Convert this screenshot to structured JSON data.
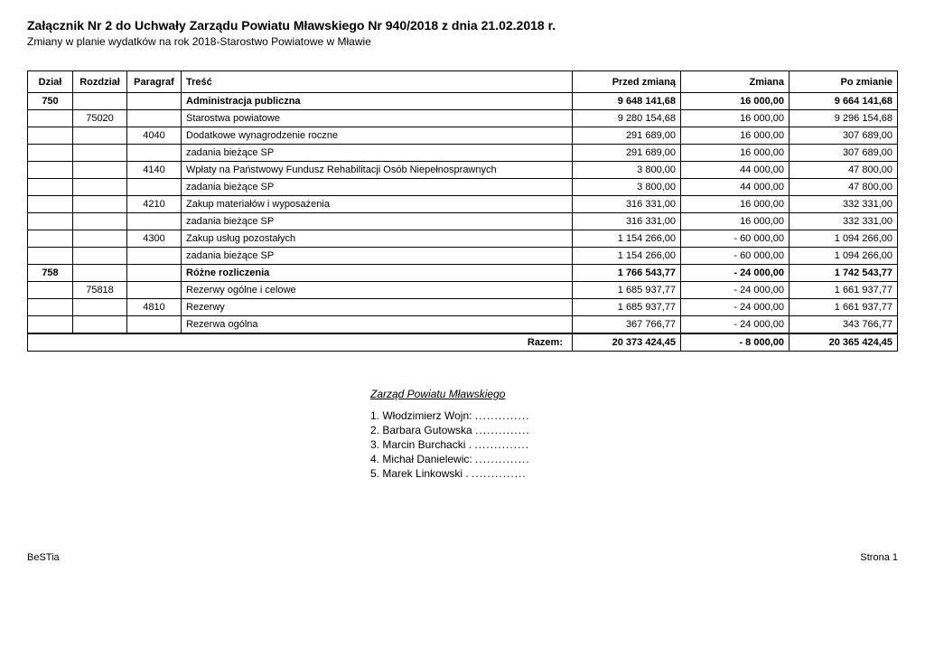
{
  "header": {
    "title": "Załącznik Nr 2 do Uchwały Zarządu Powiatu Mławskiego Nr 940/2018 z dnia 21.02.2018 r.",
    "subtitle": "Zmiany w planie wydatków na rok 2018-Starostwo Powiatowe w Mławie"
  },
  "columns": {
    "dzial": "Dział",
    "rozdzial": "Rozdział",
    "paragraf": "Paragraf",
    "tresc": "Treść",
    "przed": "Przed zmianą",
    "zmiana": "Zmiana",
    "po": "Po zmianie"
  },
  "rows": [
    {
      "dzial": "750",
      "rozdzial": "",
      "paragraf": "",
      "tresc": "Administracja publiczna",
      "przed": "9 648 141,68",
      "zmiana": "16 000,00",
      "po": "9 664 141,68",
      "bold": true
    },
    {
      "dzial": "",
      "rozdzial": "75020",
      "paragraf": "",
      "tresc": "Starostwa powiatowe",
      "przed": "9 280 154,68",
      "zmiana": "16 000,00",
      "po": "9 296 154,68",
      "bold": false
    },
    {
      "dzial": "",
      "rozdzial": "",
      "paragraf": "4040",
      "tresc": "Dodatkowe wynagrodzenie roczne",
      "przed": "291 689,00",
      "zmiana": "16 000,00",
      "po": "307 689,00",
      "bold": false
    },
    {
      "dzial": "",
      "rozdzial": "",
      "paragraf": "",
      "tresc": "zadania bieżące SP",
      "przed": "291 689,00",
      "zmiana": "16 000,00",
      "po": "307 689,00",
      "bold": false
    },
    {
      "dzial": "",
      "rozdzial": "",
      "paragraf": "4140",
      "tresc": "Wpłaty na Państwowy Fundusz Rehabilitacji Osób Niepełnosprawnych",
      "przed": "3 800,00",
      "zmiana": "44 000,00",
      "po": "47 800,00",
      "bold": false
    },
    {
      "dzial": "",
      "rozdzial": "",
      "paragraf": "",
      "tresc": "zadania bieżące SP",
      "przed": "3 800,00",
      "zmiana": "44 000,00",
      "po": "47 800,00",
      "bold": false
    },
    {
      "dzial": "",
      "rozdzial": "",
      "paragraf": "4210",
      "tresc": "Zakup materiałów i wyposażenia",
      "przed": "316 331,00",
      "zmiana": "16 000,00",
      "po": "332 331,00",
      "bold": false
    },
    {
      "dzial": "",
      "rozdzial": "",
      "paragraf": "",
      "tresc": "zadania bieżące SP",
      "przed": "316 331,00",
      "zmiana": "16 000,00",
      "po": "332 331,00",
      "bold": false
    },
    {
      "dzial": "",
      "rozdzial": "",
      "paragraf": "4300",
      "tresc": "Zakup usług pozostałych",
      "przed": "1 154 266,00",
      "zmiana": "- 60 000,00",
      "po": "1 094 266,00",
      "bold": false
    },
    {
      "dzial": "",
      "rozdzial": "",
      "paragraf": "",
      "tresc": "zadania bieżące SP",
      "przed": "1 154 266,00",
      "zmiana": "- 60 000,00",
      "po": "1 094 266,00",
      "bold": false
    },
    {
      "dzial": "758",
      "rozdzial": "",
      "paragraf": "",
      "tresc": "Różne rozliczenia",
      "przed": "1 766 543,77",
      "zmiana": "- 24 000,00",
      "po": "1 742 543,77",
      "bold": true
    },
    {
      "dzial": "",
      "rozdzial": "75818",
      "paragraf": "",
      "tresc": "Rezerwy ogólne i celowe",
      "przed": "1 685 937,77",
      "zmiana": "- 24 000,00",
      "po": "1 661 937,77",
      "bold": false
    },
    {
      "dzial": "",
      "rozdzial": "",
      "paragraf": "4810",
      "tresc": "Rezerwy",
      "przed": "1 685 937,77",
      "zmiana": "- 24 000,00",
      "po": "1 661 937,77",
      "bold": false
    },
    {
      "dzial": "",
      "rozdzial": "",
      "paragraf": "",
      "tresc": "Rezerwa ogólna",
      "przed": "367 766,77",
      "zmiana": "- 24 000,00",
      "po": "343 766,77",
      "bold": false
    }
  ],
  "razem": {
    "label": "Razem:",
    "przed": "20 373 424,45",
    "zmiana": "- 8 000,00",
    "po": "20 365 424,45"
  },
  "signatures": {
    "title": "Zarząd Powiatu Mławskiego",
    "lines": [
      "1. Włodzimierz Wojn:",
      "2. Barbara Gutowska",
      "3. Marcin Burchacki .",
      "4. Michał Danielewic:",
      "5. Marek Linkowski ."
    ],
    "dots": ".............."
  },
  "footer": {
    "left": "BeSTia",
    "right": "Strona 1"
  }
}
